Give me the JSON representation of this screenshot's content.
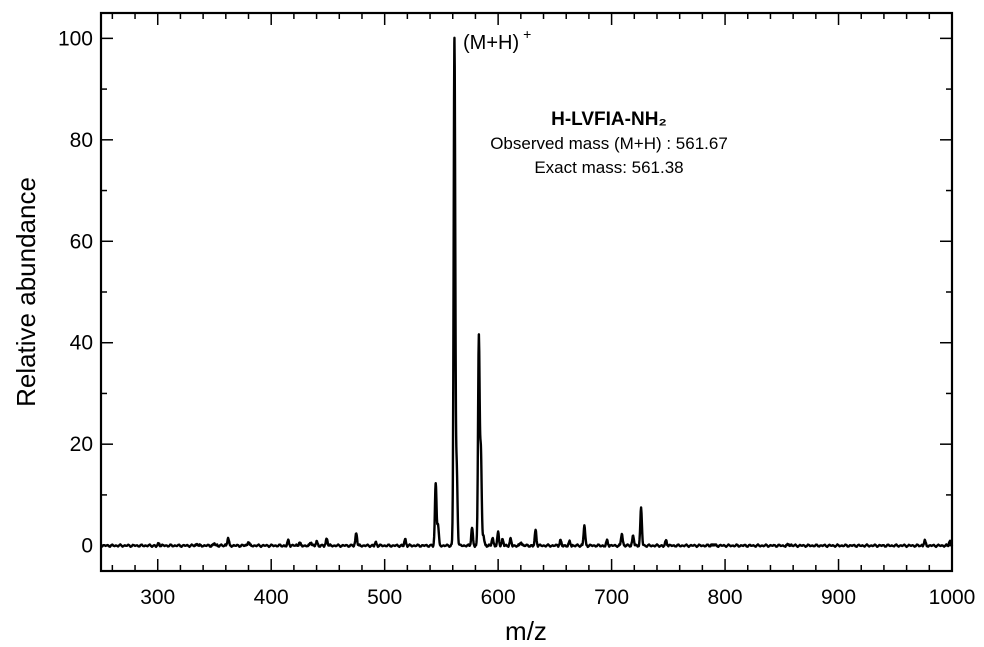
{
  "chart_data": {
    "type": "line",
    "title": "",
    "xlabel": "m/z",
    "ylabel": "Relative abundance",
    "xlim": [
      250,
      1000
    ],
    "ylim": [
      -5,
      105
    ],
    "x_ticks": [
      300,
      400,
      500,
      600,
      700,
      800,
      900,
      1000
    ],
    "x_tick_labels": [
      "300",
      "400",
      "500",
      "600",
      "700",
      "800",
      "900",
      "1000"
    ],
    "y_ticks": [
      0,
      20,
      40,
      60,
      80,
      100
    ],
    "y_tick_labels": [
      "0",
      "20",
      "40",
      "60",
      "80",
      "100"
    ],
    "grid": false,
    "line_color": "#000000",
    "annotations": {
      "peak_label_main": "(M+H)",
      "peak_label_sup": "+",
      "compound": "H-LVFIA-NH₂",
      "observed": "Observed mass (M+H) : 561.67",
      "exact": "Exact mass:  561.38"
    },
    "peaks": [
      {
        "x": 301,
        "y": 0.4
      },
      {
        "x": 335,
        "y": 0.3
      },
      {
        "x": 350,
        "y": 0.5
      },
      {
        "x": 362,
        "y": 1.5
      },
      {
        "x": 380,
        "y": 0.8
      },
      {
        "x": 415,
        "y": 1.0
      },
      {
        "x": 425,
        "y": 0.6
      },
      {
        "x": 435,
        "y": 0.7
      },
      {
        "x": 440,
        "y": 0.8
      },
      {
        "x": 449,
        "y": 1.4
      },
      {
        "x": 475,
        "y": 2.5
      },
      {
        "x": 492,
        "y": 0.6
      },
      {
        "x": 518,
        "y": 1.2
      },
      {
        "x": 545,
        "y": 12.3
      },
      {
        "x": 547,
        "y": 4.0
      },
      {
        "x": 561.5,
        "y": 100
      },
      {
        "x": 563.5,
        "y": 15.0
      },
      {
        "x": 577,
        "y": 3.5
      },
      {
        "x": 583,
        "y": 41.2
      },
      {
        "x": 584.8,
        "y": 18.0
      },
      {
        "x": 587,
        "y": 2.0
      },
      {
        "x": 595,
        "y": 1.5
      },
      {
        "x": 600,
        "y": 2.6
      },
      {
        "x": 604,
        "y": 1.2
      },
      {
        "x": 611,
        "y": 1.3
      },
      {
        "x": 620,
        "y": 0.7
      },
      {
        "x": 633,
        "y": 3.0
      },
      {
        "x": 655,
        "y": 1.0
      },
      {
        "x": 663,
        "y": 0.8
      },
      {
        "x": 676,
        "y": 4.0
      },
      {
        "x": 696,
        "y": 1.0
      },
      {
        "x": 709,
        "y": 2.4
      },
      {
        "x": 719,
        "y": 2.0
      },
      {
        "x": 726,
        "y": 7.4
      },
      {
        "x": 748,
        "y": 1.0
      },
      {
        "x": 790,
        "y": 0.3
      },
      {
        "x": 856,
        "y": 0.3
      },
      {
        "x": 976,
        "y": 1.0
      },
      {
        "x": 998,
        "y": 0.9
      }
    ]
  }
}
